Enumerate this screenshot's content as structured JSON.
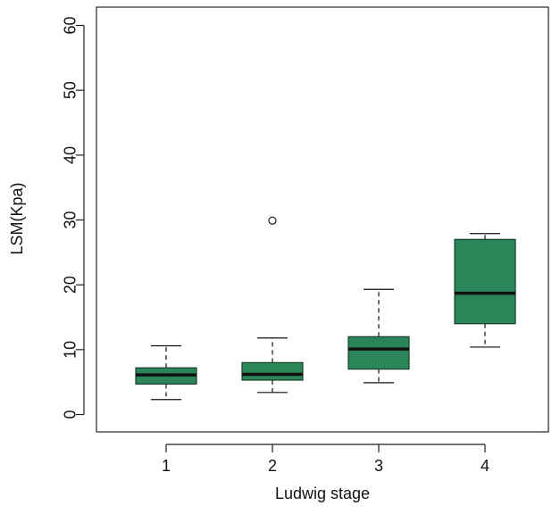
{
  "chart_data": {
    "type": "boxplot",
    "title": "",
    "xlabel": "Ludwig stage",
    "ylabel": "LSM(Kpa)",
    "ylim": [
      0,
      60
    ],
    "yticks": [
      0,
      10,
      20,
      30,
      40,
      50,
      60
    ],
    "categories": [
      "1",
      "2",
      "3",
      "4"
    ],
    "boxes": [
      {
        "category": "1",
        "whisker_low": 2.3,
        "q1": 4.7,
        "median": 6.1,
        "q3": 7.2,
        "whisker_high": 10.6,
        "outliers": []
      },
      {
        "category": "2",
        "whisker_low": 3.4,
        "q1": 5.3,
        "median": 6.2,
        "q3": 8.0,
        "whisker_high": 11.8,
        "outliers": [
          29.9
        ]
      },
      {
        "category": "3",
        "whisker_low": 4.9,
        "q1": 7.0,
        "median": 10.1,
        "q3": 12.0,
        "whisker_high": 19.3,
        "outliers": []
      },
      {
        "category": "4",
        "whisker_low": 10.4,
        "q1": 14.0,
        "median": 18.7,
        "q3": 27.0,
        "whisker_high": 27.9,
        "outliers": []
      }
    ],
    "colors": {
      "box_fill": "#2a8558",
      "median": "#111111",
      "axis": "#222222"
    },
    "grid": false
  }
}
